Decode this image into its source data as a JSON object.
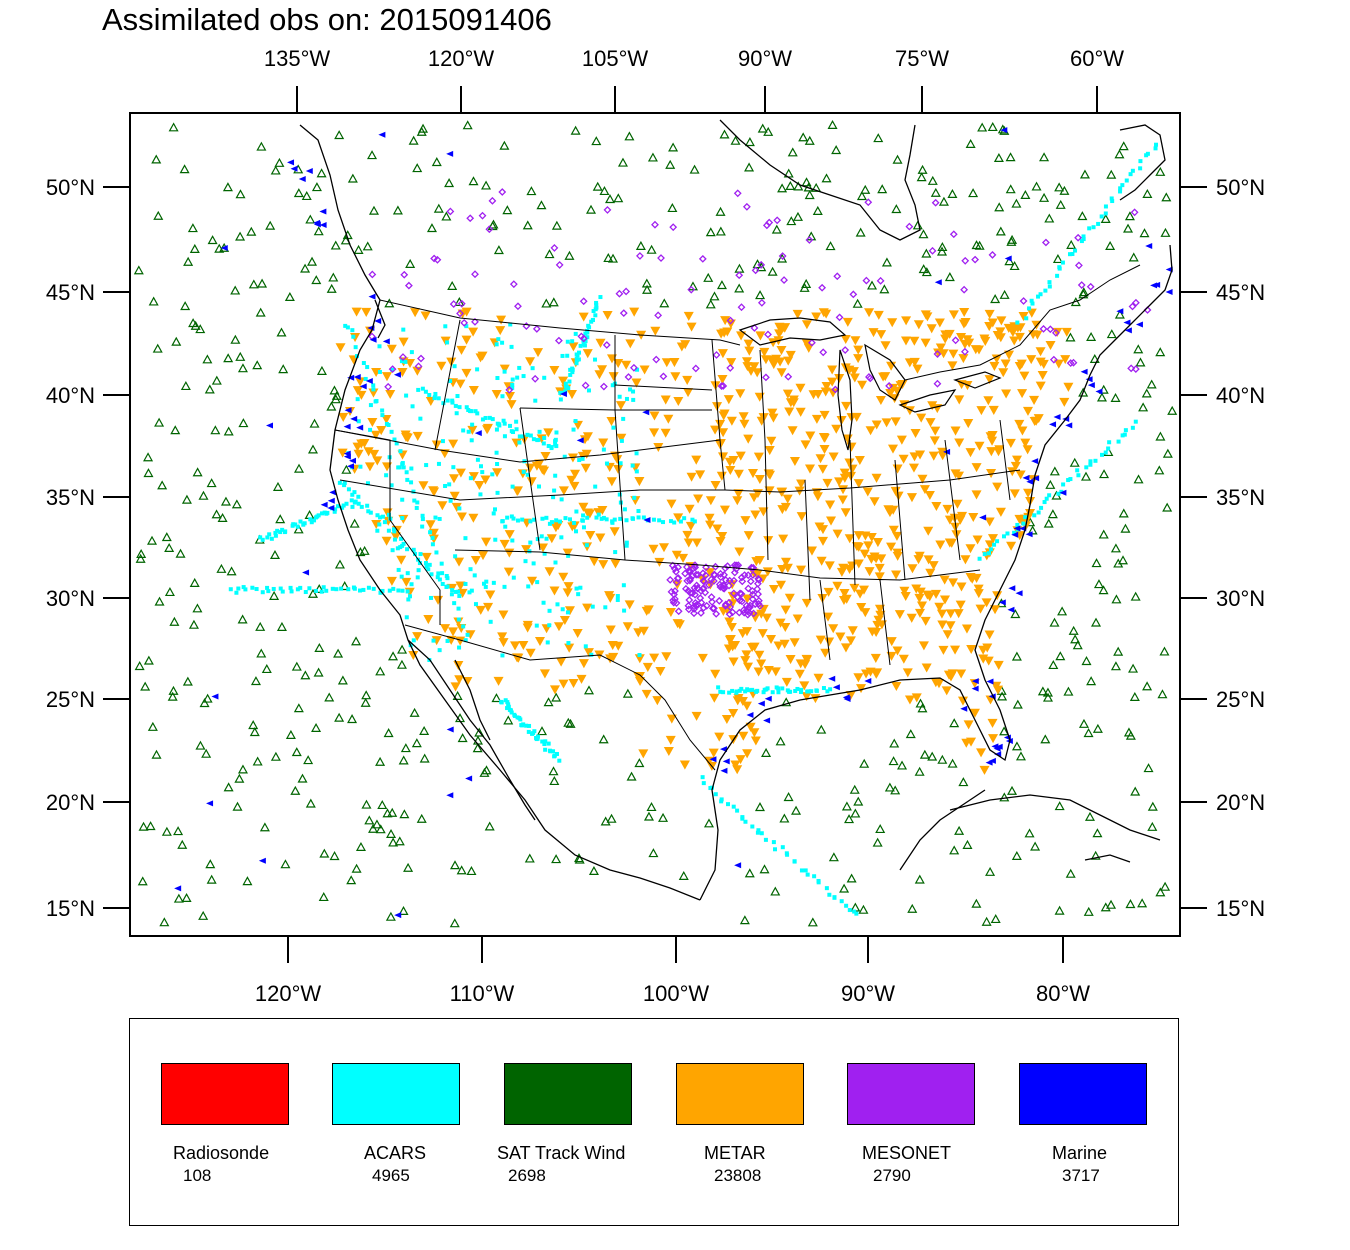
{
  "title": "Assimilated obs on: 2015091406",
  "top_lon_labels": [
    "135°W",
    "120°W",
    "105°W",
    "90°W",
    "75°W",
    "60°W"
  ],
  "bottom_lon_labels": [
    "120°W",
    "110°W",
    "100°W",
    "90°W",
    "80°W"
  ],
  "lat_labels": [
    "50°N",
    "45°N",
    "40°N",
    "35°N",
    "30°N",
    "25°N",
    "20°N",
    "15°N"
  ],
  "legend": [
    {
      "label": "Radiosonde",
      "count": "108",
      "color": "#ff0000"
    },
    {
      "label": "ACARS",
      "count": "4965",
      "color": "#00ffff"
    },
    {
      "label": "SAT Track Wind",
      "count": "2698",
      "color": "#006400"
    },
    {
      "label": "METAR",
      "count": "23808",
      "color": "#ffa500"
    },
    {
      "label": "MESONET",
      "count": "2790",
      "color": "#a020f0"
    },
    {
      "label": "Marine",
      "count": "3717",
      "color": "#0000ff"
    }
  ]
}
